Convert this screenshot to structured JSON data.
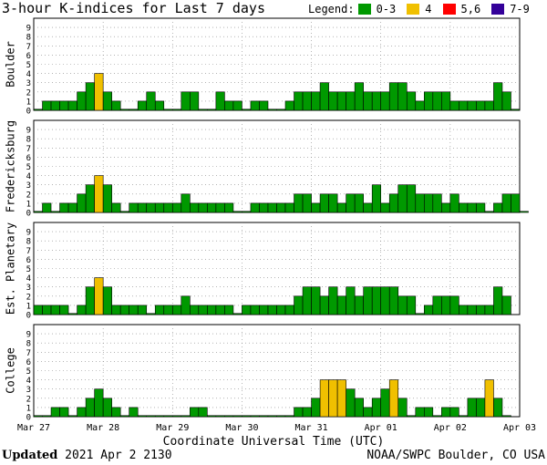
{
  "header": {
    "title": "3-hour K-indices for Last 7 days",
    "legend_label": "Legend:",
    "legend": [
      {
        "label": "0-3",
        "color": "#009900"
      },
      {
        "label": "4",
        "color": "#f0c000"
      },
      {
        "label": "5,6",
        "color": "#ff0000"
      },
      {
        "label": "7-9",
        "color": "#330099"
      }
    ]
  },
  "footer": {
    "xlabel": "Coordinate Universal Time (UTC)",
    "updated_label": "Updated",
    "updated_value": "2021 Apr  2 2130",
    "credit": "NOAA/SWPC Boulder, CO USA"
  },
  "chart_data": {
    "type": "bar",
    "x_ticks": [
      "Mar 27",
      "Mar 28",
      "Mar 29",
      "Mar 30",
      "Mar 31",
      "Apr 01",
      "Apr 02",
      "Apr 03"
    ],
    "ylim": [
      0,
      9
    ],
    "y_ticks": [
      0,
      1,
      2,
      3,
      4,
      5,
      6,
      7,
      8,
      9
    ],
    "grid": true,
    "legend_position": "top-right",
    "panels": [
      {
        "name": "Boulder",
        "values": [
          0,
          1,
          1,
          1,
          1,
          2,
          3,
          4,
          2,
          1,
          0,
          0,
          1,
          2,
          1,
          0,
          0,
          2,
          2,
          0,
          0,
          2,
          1,
          1,
          0,
          1,
          1,
          0,
          0,
          1,
          2,
          2,
          2,
          3,
          2,
          2,
          2,
          3,
          2,
          2,
          2,
          3,
          3,
          2,
          1,
          2,
          2,
          2,
          1,
          1,
          1,
          1,
          1,
          3,
          2,
          0
        ]
      },
      {
        "name": "Fredericksburg",
        "values": [
          0,
          1,
          0,
          1,
          1,
          2,
          3,
          4,
          3,
          1,
          0,
          1,
          1,
          1,
          1,
          1,
          1,
          2,
          1,
          1,
          1,
          1,
          1,
          0,
          0,
          1,
          1,
          1,
          1,
          1,
          2,
          2,
          1,
          2,
          2,
          1,
          2,
          2,
          1,
          3,
          1,
          2,
          3,
          3,
          2,
          2,
          2,
          1,
          2,
          1,
          1,
          1,
          0,
          1,
          2,
          2,
          0
        ]
      },
      {
        "name": "Est. Planetary",
        "values": [
          1,
          1,
          1,
          1,
          0,
          1,
          3,
          4,
          3,
          1,
          1,
          1,
          1,
          0,
          1,
          1,
          1,
          2,
          1,
          1,
          1,
          1,
          1,
          0,
          1,
          1,
          1,
          1,
          1,
          1,
          2,
          3,
          3,
          2,
          3,
          2,
          3,
          2,
          3,
          3,
          3,
          3,
          2,
          2,
          0,
          1,
          2,
          2,
          2,
          1,
          1,
          1,
          1,
          3,
          2
        ]
      },
      {
        "name": "College",
        "values": [
          0,
          0,
          1,
          1,
          0,
          1,
          2,
          3,
          2,
          1,
          0,
          1,
          0,
          0,
          0,
          0,
          0,
          0,
          1,
          1,
          0,
          0,
          0,
          0,
          0,
          0,
          0,
          0,
          0,
          0,
          1,
          1,
          2,
          4,
          4,
          4,
          3,
          2,
          1,
          2,
          3,
          4,
          2,
          0,
          1,
          1,
          0,
          1,
          1,
          0,
          2,
          2,
          4,
          2,
          0
        ]
      }
    ]
  }
}
